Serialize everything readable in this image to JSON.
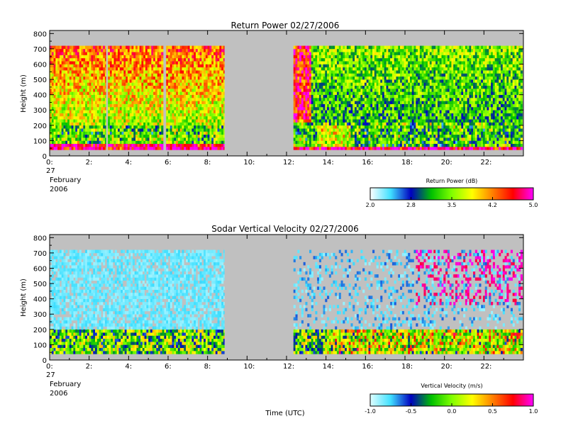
{
  "chart_data": [
    {
      "type": "heatmap",
      "title": "Return Power 02/27/2006",
      "ylabel": "Height (m)",
      "xlabel": "",
      "xlim": [
        0,
        24
      ],
      "ylim": [
        0,
        820
      ],
      "x_ticks": [
        "0:",
        "2:",
        "4:",
        "6:",
        "8:",
        "10:",
        "12:",
        "14:",
        "16:",
        "18:",
        "20:",
        "22:"
      ],
      "x_tick_values": [
        0,
        2,
        4,
        6,
        8,
        10,
        12,
        14,
        16,
        18,
        20,
        22
      ],
      "y_ticks": [
        "0",
        "100",
        "200",
        "300",
        "400",
        "500",
        "600",
        "700",
        "800"
      ],
      "y_tick_values": [
        0,
        100,
        200,
        300,
        400,
        500,
        600,
        700,
        800
      ],
      "date_label": [
        "27",
        "February",
        "2006"
      ],
      "data_extent": {
        "height_min": 40,
        "height_max": 720
      },
      "data_segments": [
        [
          0,
          2.85
        ],
        [
          2.95,
          5.75
        ],
        [
          5.9,
          8.85
        ],
        [
          12.35,
          23.95
        ]
      ],
      "background_color": "#c0c0c0",
      "colorbar": {
        "label": "Return Power (dB)",
        "ticks": [
          "2.0",
          "2.8",
          "3.5",
          "4.2",
          "5.0"
        ],
        "range": [
          2.0,
          5.0
        ],
        "colors": [
          "#ffffff",
          "#40e0ff",
          "#0000c0",
          "#00c000",
          "#80ff00",
          "#ffff00",
          "#ff8000",
          "#ff0000",
          "#ff00ff"
        ]
      }
    },
    {
      "type": "heatmap",
      "title": "Sodar Vertical Velocity 02/27/2006",
      "ylabel": "Height (m)",
      "xlabel": "Time (UTC)",
      "xlim": [
        0,
        24
      ],
      "ylim": [
        0,
        820
      ],
      "x_ticks": [
        "0:",
        "2:",
        "4:",
        "6:",
        "8:",
        "10:",
        "12:",
        "14:",
        "16:",
        "18:",
        "20:",
        "22:"
      ],
      "x_tick_values": [
        0,
        2,
        4,
        6,
        8,
        10,
        12,
        14,
        16,
        18,
        20,
        22
      ],
      "y_ticks": [
        "0",
        "100",
        "200",
        "300",
        "400",
        "500",
        "600",
        "700",
        "800"
      ],
      "y_tick_values": [
        0,
        100,
        200,
        300,
        400,
        500,
        600,
        700,
        800
      ],
      "date_label": [
        "27",
        "February",
        "2006"
      ],
      "data_extent": {
        "height_min": 40,
        "height_max": 720
      },
      "data_segments": [
        [
          0,
          8.85
        ],
        [
          12.35,
          23.95
        ]
      ],
      "background_color": "#c0c0c0",
      "colorbar": {
        "label": "Vertical Velocity (m/s)",
        "ticks": [
          "-1.0",
          "-0.5",
          "0.0",
          "0.5",
          "1.0"
        ],
        "range": [
          -1.0,
          1.0
        ],
        "colors": [
          "#e0ffff",
          "#40e0ff",
          "#0000c0",
          "#00c000",
          "#80ff00",
          "#ffff00",
          "#ff8000",
          "#ff0000",
          "#ff00ff"
        ]
      }
    }
  ]
}
